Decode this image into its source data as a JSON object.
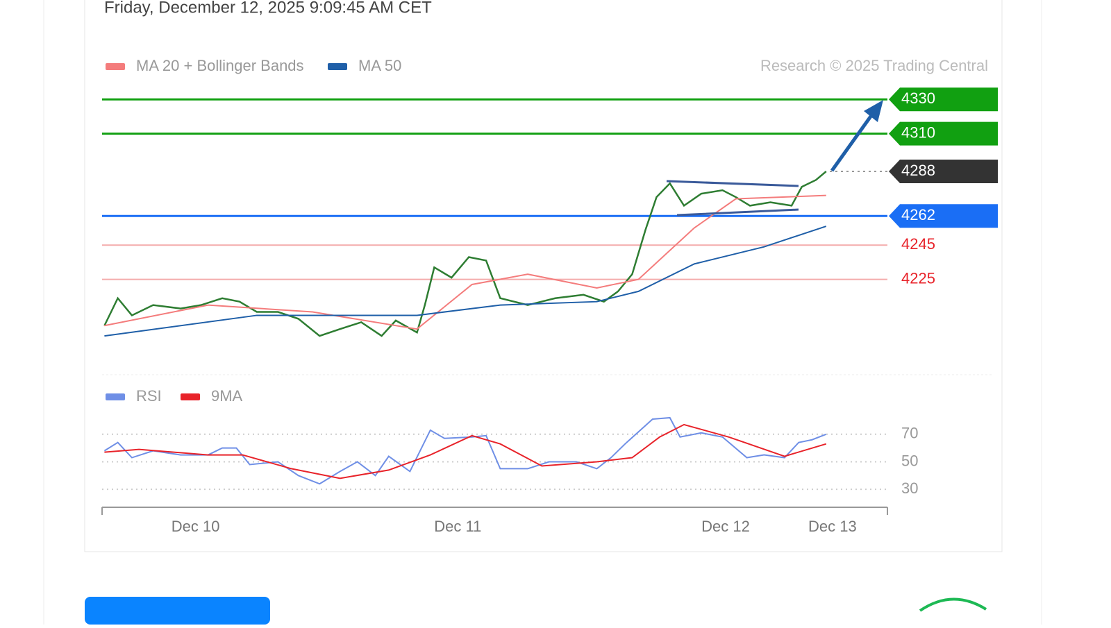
{
  "header": {
    "date": "Friday, December 12, 2025 9:09:45 AM CET"
  },
  "chart_data": [
    {
      "type": "line",
      "credit": "Research © 2025 Trading Central",
      "xlim": [
        0,
        100
      ],
      "ylim": [
        4173,
        4337
      ],
      "xticks": [
        {
          "value": 11.9,
          "label": "Dec 10"
        },
        {
          "value": 45.3,
          "label": "Dec 11"
        },
        {
          "value": 79.4,
          "label": "Dec 12"
        },
        {
          "value": 93.0,
          "label": "Dec 13"
        }
      ],
      "levels": [
        4330,
        4310,
        4288,
        4262,
        4245,
        4225
      ],
      "level_colors": [
        "#11a011",
        "#11a011",
        "#333333",
        "#1a6ef5",
        "#f08a8a",
        "#f08a8a"
      ],
      "series": [
        {
          "color": "#2e7d32",
          "x": [
            0.3,
            2.0,
            3.8,
            6.5,
            10.0,
            12.6,
            15.3,
            17.5,
            19.7,
            22.4,
            25.0,
            27.7,
            30.3,
            33.0,
            35.6,
            37.4,
            40.1,
            41.1,
            42.3,
            44.5,
            46.7,
            48.9,
            50.7,
            54.2,
            57.7,
            61.3,
            63.9,
            65.7,
            67.5,
            69.2,
            70.6,
            72.3,
            74.1,
            76.3,
            79.0,
            80.7,
            82.5,
            85.1,
            87.8,
            89.1,
            90.9,
            92.2
          ],
          "values": [
            4198,
            4214,
            4204,
            4210,
            4208,
            4210,
            4214,
            4212,
            4206,
            4206,
            4202,
            4192,
            4196,
            4200,
            4192,
            4201,
            4194,
            4210,
            4232,
            4226,
            4238,
            4236,
            4214,
            4210,
            4214,
            4216,
            4212,
            4218,
            4228,
            4254,
            4273,
            4281,
            4268,
            4275,
            4277,
            4273,
            4268,
            4270,
            4268,
            4279,
            4283,
            4288
          ]
        },
        {
          "name": "MA 20 + Bollinger Bands",
          "color": "#f47c7c",
          "x": [
            0.3,
            13.5,
            26.8,
            40.1,
            47.1,
            54.2,
            63.0,
            68.3,
            75.4,
            80.7,
            92.2
          ],
          "values": [
            4198,
            4210,
            4206,
            4196,
            4222,
            4228,
            4220,
            4225,
            4255,
            4272,
            4274
          ]
        },
        {
          "name": "MA 50",
          "color": "#1f5fa8",
          "x": [
            0.3,
            19.7,
            40.1,
            50.7,
            63.0,
            68.3,
            75.4,
            84.3,
            92.2
          ],
          "values": [
            4192,
            4204,
            4204,
            4210,
            4212,
            4218,
            4234,
            4244,
            4256
          ]
        }
      ]
    },
    {
      "type": "line",
      "xlim": [
        0,
        100
      ],
      "ylim": [
        18,
        83
      ],
      "yticks": [
        30,
        50,
        70
      ],
      "series": [
        {
          "name": "RSI",
          "color": "#6f8fe6",
          "x": [
            0.3,
            2.0,
            3.8,
            6.5,
            10.0,
            13.5,
            15.3,
            17.1,
            18.8,
            22.4,
            25.0,
            27.7,
            30.3,
            32.5,
            34.8,
            36.5,
            39.2,
            41.8,
            43.6,
            47.1,
            48.9,
            50.7,
            54.2,
            56.9,
            60.4,
            63.0,
            64.8,
            66.6,
            70.1,
            72.3,
            73.6,
            76.3,
            79.0,
            82.1,
            84.3,
            86.9,
            88.7,
            90.4,
            92.2
          ],
          "values": [
            58,
            64,
            53,
            58,
            55,
            55,
            60,
            60,
            48,
            50,
            40,
            34,
            43,
            50,
            40,
            54,
            43,
            73,
            67,
            68,
            69,
            45,
            45,
            50,
            50,
            45,
            53,
            63,
            81,
            82,
            68,
            71,
            68,
            53,
            55,
            53,
            64,
            66,
            70
          ]
        },
        {
          "name": "9MA",
          "color": "#e8232a",
          "x": [
            0.3,
            4.7,
            13.5,
            17.9,
            24.1,
            30.3,
            36.5,
            41.8,
            47.1,
            50.7,
            56.0,
            63.0,
            67.5,
            71.0,
            74.1,
            79.8,
            86.9,
            92.2
          ],
          "values": [
            57,
            59,
            55,
            55,
            45,
            38,
            44,
            55,
            69,
            63,
            47,
            50,
            53,
            68,
            77,
            68,
            54,
            63
          ]
        }
      ]
    }
  ]
}
